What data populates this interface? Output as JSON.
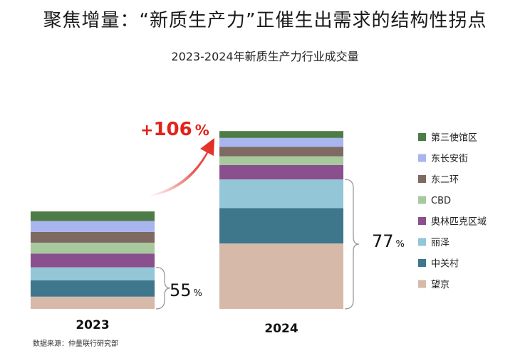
{
  "headline": "聚焦增量：“新质生产力”正催生出需求的结构性拐点",
  "source": "数据来源：仲量联行研究部",
  "colors": {
    "growth": "#e2231a",
    "望京": "#d6b9a8",
    "中关村": "#3e768c",
    "丽泽": "#93c6d6",
    "奥林匹克区域": "#8a4f8d",
    "CBD": "#a8c89e",
    "东二环": "#7e6a62",
    "东长安街": "#a9b5ee",
    "第三使馆区": "#4d7c47"
  },
  "chart_data": {
    "type": "bar",
    "stacked": true,
    "title": "2023-2024年新质生产力行业成交量",
    "categories": [
      "2023",
      "2024"
    ],
    "ylim": [
      0,
      280
    ],
    "legend_position": "right",
    "series": [
      {
        "name": "望京",
        "values": [
          18,
          96
        ]
      },
      {
        "name": "中关村",
        "values": [
          24,
          52
        ]
      },
      {
        "name": "丽泽",
        "values": [
          19,
          42
        ]
      },
      {
        "name": "奥林匹克区域",
        "values": [
          20,
          21
        ]
      },
      {
        "name": "CBD",
        "values": [
          16,
          13
        ]
      },
      {
        "name": "东二环",
        "values": [
          16,
          14
        ]
      },
      {
        "name": "东长安街",
        "values": [
          16,
          13
        ]
      },
      {
        "name": "第三使馆区",
        "values": [
          14,
          10
        ]
      }
    ],
    "annotations": {
      "growth": {
        "sign": "+",
        "value": "106",
        "unit": "%"
      },
      "share_2023": {
        "value": "55",
        "unit": "%"
      },
      "share_2024": {
        "value": "77",
        "unit": "%"
      }
    }
  }
}
